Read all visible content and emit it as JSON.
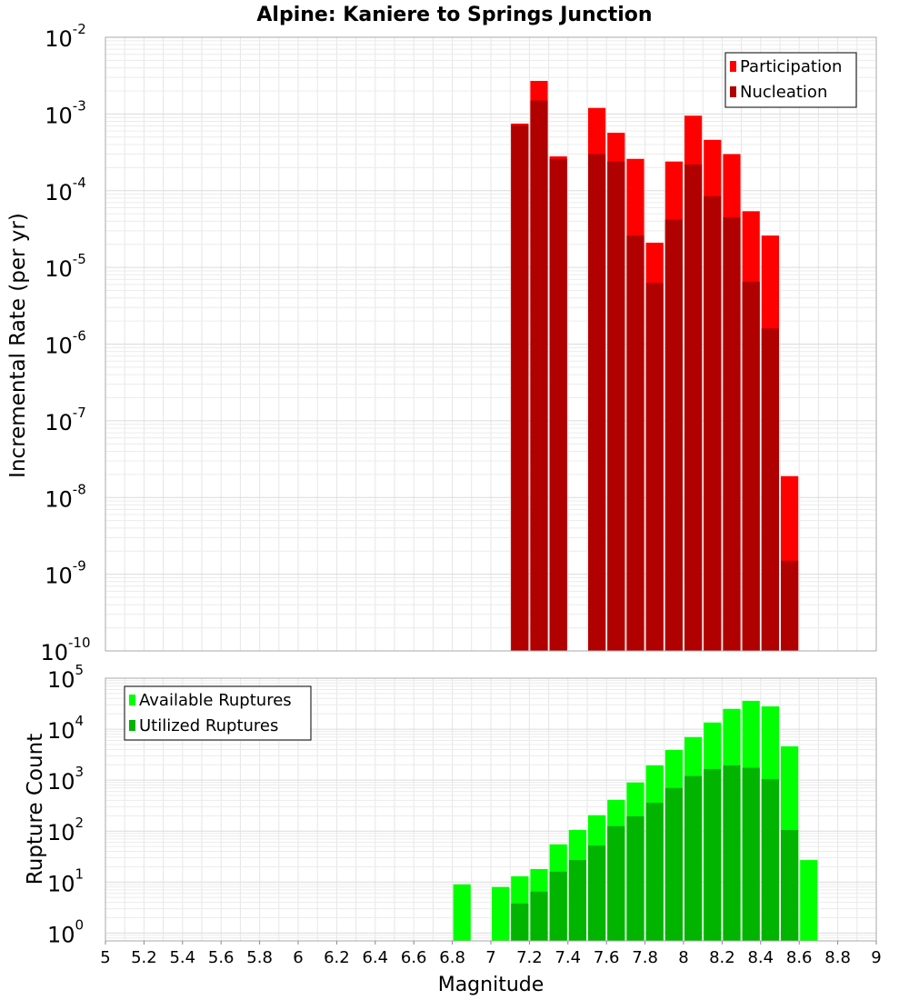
{
  "title": "Alpine: Kaniere to Springs Junction",
  "xlabel": "Magnitude",
  "colors": {
    "participation": "#ff0000",
    "nucleation": "#b00000",
    "available": "#00ff00",
    "utilized": "#00b400",
    "grid": "#e6e6e6",
    "frame": "#aaaaaa"
  },
  "chart_data": [
    {
      "type": "bar",
      "name": "rates",
      "title": "Alpine: Kaniere to Springs Junction",
      "xlabel": "",
      "ylabel": "Incremental Rate (per yr)",
      "yscale": "log",
      "xlim": [
        5,
        9
      ],
      "ylim": [
        1e-10,
        0.01
      ],
      "grid": true,
      "legend": "top-right",
      "ytick_exponents": [
        -10,
        -9,
        -8,
        -7,
        -6,
        -5,
        -4,
        -3,
        -2
      ],
      "x": [
        7.15,
        7.25,
        7.35,
        7.55,
        7.65,
        7.75,
        7.85,
        7.95,
        8.05,
        8.15,
        8.25,
        8.35,
        8.45,
        8.55
      ],
      "series": [
        {
          "name": "Participation",
          "color": "#ff0000",
          "values": [
            0.00075,
            0.0027,
            0.00028,
            0.0012,
            0.00057,
            0.00026,
            2.1e-05,
            0.00024,
            0.00095,
            0.00046,
            0.0003,
            5.4e-05,
            2.6e-05,
            1.9e-08
          ]
        },
        {
          "name": "Nucleation",
          "color": "#b00000",
          "values": [
            0.00072,
            0.0015,
            0.00026,
            0.0003,
            0.00024,
            2.6e-05,
            6.3e-06,
            4.2e-05,
            0.00022,
            8.5e-05,
            4.5e-05,
            6.5e-06,
            1.6e-06,
            1.5e-09
          ]
        }
      ]
    },
    {
      "type": "bar",
      "name": "counts",
      "title": "",
      "xlabel": "Magnitude",
      "ylabel": "Rupture Count",
      "yscale": "log",
      "xlim": [
        5,
        9
      ],
      "ylim": [
        0.7,
        100000
      ],
      "grid": true,
      "legend": "top-left",
      "ytick_exponents": [
        0,
        1,
        2,
        3,
        4,
        5
      ],
      "xticks": [
        "5",
        "5.2",
        "5.4",
        "5.6",
        "5.8",
        "6",
        "6.2",
        "6.4",
        "6.6",
        "6.8",
        "7",
        "7.2",
        "7.4",
        "7.6",
        "7.8",
        "8",
        "8.2",
        "8.4",
        "8.6",
        "8.8",
        "9"
      ],
      "x": [
        6.85,
        7.05,
        7.15,
        7.25,
        7.35,
        7.45,
        7.55,
        7.65,
        7.75,
        7.85,
        7.95,
        8.05,
        8.15,
        8.25,
        8.35,
        8.45,
        8.55,
        8.65
      ],
      "series": [
        {
          "name": "Available Ruptures",
          "color": "#00ff00",
          "values": [
            9,
            8,
            13,
            18,
            55,
            105,
            205,
            410,
            900,
            1950,
            3900,
            7000,
            13500,
            25000,
            36000,
            28000,
            4600,
            27
          ]
        },
        {
          "name": "Utilized Ruptures",
          "color": "#00b400",
          "values": [
            0,
            0,
            3.8,
            6.5,
            16,
            27,
            52,
            125,
            195,
            360,
            700,
            1200,
            1650,
            1950,
            1750,
            1050,
            105,
            0
          ]
        }
      ]
    }
  ]
}
